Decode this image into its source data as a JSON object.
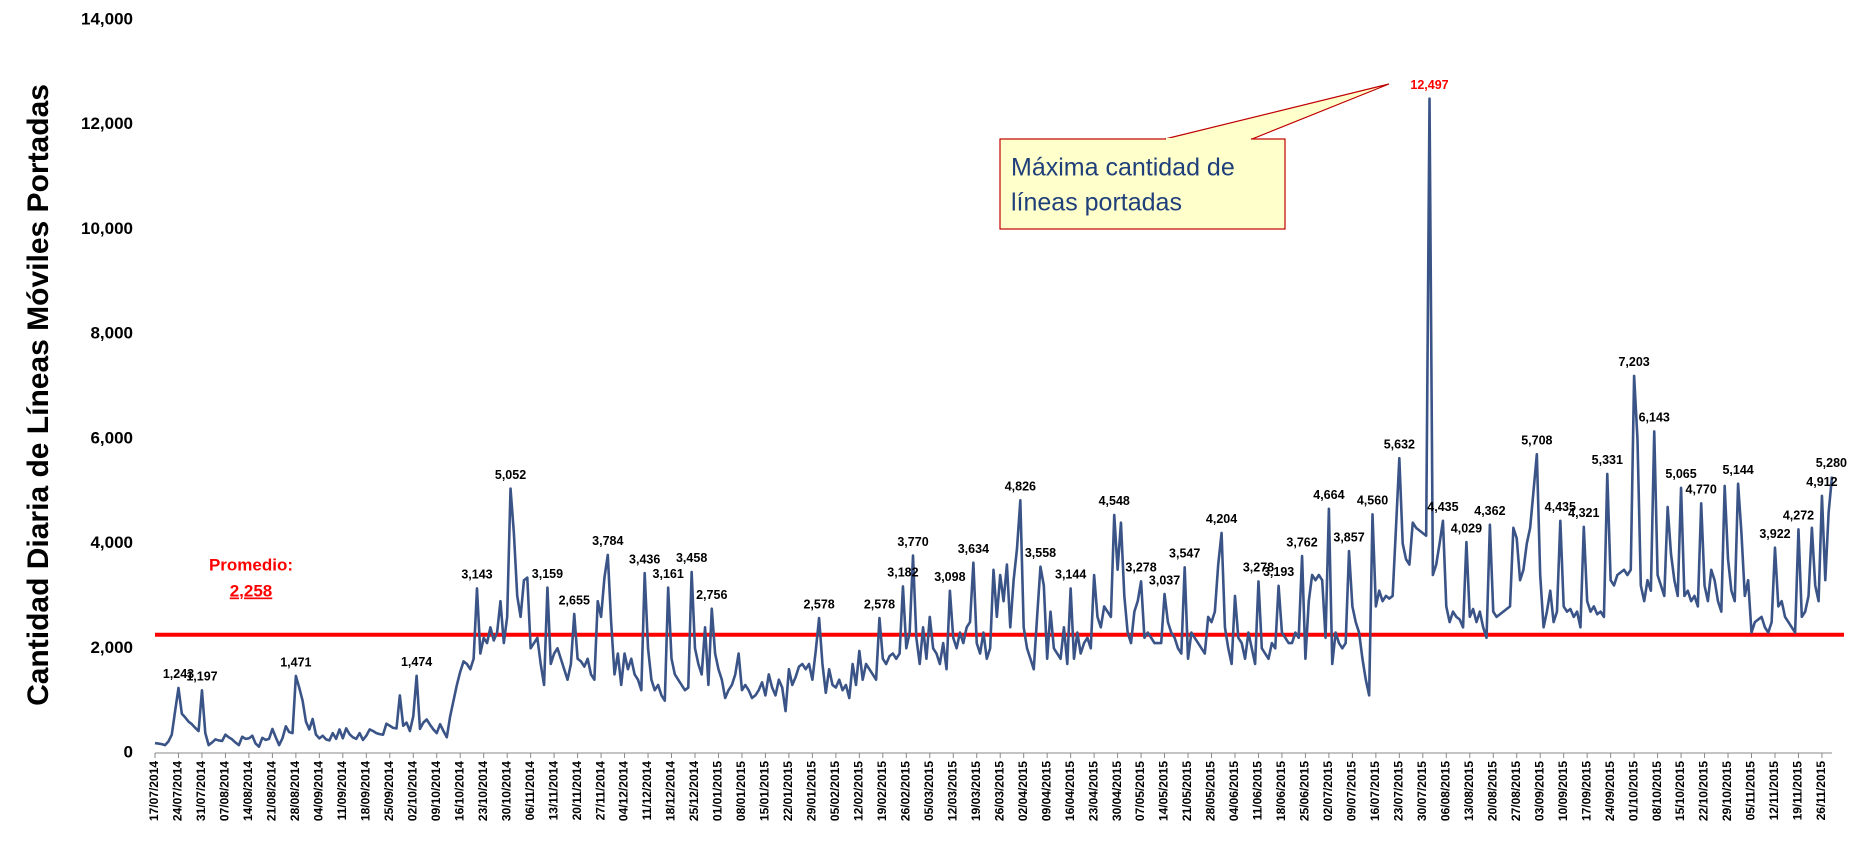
{
  "chart_data": {
    "type": "line",
    "y_label": "Cantidad Diaria de Líneas Móviles Portadas",
    "color": "#3b5487",
    "ylim": [
      0,
      14000
    ],
    "yticks": [
      0,
      {
        "value": 2000,
        "label": "2,000"
      },
      {
        "value": 4000,
        "label": "4,000"
      },
      {
        "value": 6000,
        "label": "6,000"
      },
      {
        "value": 8000,
        "label": "8,000"
      },
      {
        "value": 10000,
        "label": "10,000"
      },
      {
        "value": 12000,
        "label": "12,000"
      },
      {
        "value": 14000,
        "label": "14,000"
      }
    ],
    "grid": false,
    "average": {
      "label": "Promedio:",
      "value": 2258,
      "value_label": "2,258",
      "color": "#ff0000"
    },
    "callout": {
      "text": [
        "Máxima cantidad de",
        "líneas portadas"
      ],
      "fill": "#ffffcc",
      "border": "#c00000",
      "text_color": "#1f3f7a",
      "highlight_color": "#ff0000"
    },
    "categories": [
      "17/07/2014",
      null,
      null,
      null,
      null,
      null,
      null,
      "24/07/2014",
      null,
      null,
      null,
      null,
      null,
      null,
      "31/07/2014",
      null,
      null,
      null,
      null,
      null,
      null,
      "07/08/2014",
      null,
      null,
      null,
      null,
      null,
      null,
      "14/08/2014",
      null,
      null,
      null,
      null,
      null,
      null,
      "21/08/2014",
      null,
      null,
      null,
      null,
      null,
      null,
      "28/08/2014",
      null,
      null,
      null,
      null,
      null,
      null,
      "04/09/2014",
      null,
      null,
      null,
      null,
      null,
      null,
      "11/09/2014",
      null,
      null,
      null,
      null,
      null,
      null,
      "18/09/2014",
      null,
      null,
      null,
      null,
      null,
      null,
      "25/09/2014",
      null,
      null,
      null,
      null,
      null,
      null,
      "02/10/2014",
      null,
      null,
      null,
      null,
      null,
      null,
      "09/10/2014",
      null,
      null,
      null,
      null,
      null,
      null,
      "16/10/2014",
      null,
      null,
      null,
      null,
      null,
      null,
      "23/10/2014",
      null,
      null,
      null,
      null,
      null,
      null,
      "30/10/2014",
      null,
      null,
      null,
      null,
      null,
      null,
      "06/11/2014",
      null,
      null,
      null,
      null,
      null,
      null,
      "13/11/2014",
      null,
      null,
      null,
      null,
      null,
      null,
      "20/11/2014",
      null,
      null,
      null,
      null,
      null,
      null,
      "27/11/2014",
      null,
      null,
      null,
      null,
      null,
      null,
      "04/12/2014",
      null,
      null,
      null,
      null,
      null,
      null,
      "11/12/2014",
      null,
      null,
      null,
      null,
      null,
      null,
      "18/12/2014",
      null,
      null,
      null,
      null,
      null,
      null,
      "25/12/2014",
      null,
      null,
      null,
      null,
      null,
      null,
      "01/01/2015",
      null,
      null,
      null,
      null,
      null,
      null,
      "08/01/2015",
      null,
      null,
      null,
      null,
      null,
      null,
      "15/01/2015",
      null,
      null,
      null,
      null,
      null,
      null,
      "22/01/2015",
      null,
      null,
      null,
      null,
      null,
      null,
      "29/01/2015",
      null,
      null,
      null,
      null,
      null,
      null,
      "05/02/2015",
      null,
      null,
      null,
      null,
      null,
      null,
      "12/02/2015",
      null,
      null,
      null,
      null,
      null,
      null,
      "19/02/2015",
      null,
      null,
      null,
      null,
      null,
      null,
      "26/02/2015",
      null,
      null,
      null,
      null,
      null,
      null,
      "05/03/2015",
      null,
      null,
      null,
      null,
      null,
      null,
      "12/03/2015",
      null,
      null,
      null,
      null,
      null,
      null,
      "19/03/2015",
      null,
      null,
      null,
      null,
      null,
      null,
      "26/03/2015",
      null,
      null,
      null,
      null,
      null,
      null,
      "02/04/2015",
      null,
      null,
      null,
      null,
      null,
      null,
      "09/04/2015",
      null,
      null,
      null,
      null,
      null,
      null,
      "16/04/2015",
      null,
      null,
      null,
      null,
      null,
      null,
      "23/04/2015",
      null,
      null,
      null,
      null,
      null,
      null,
      "30/04/2015",
      null,
      null,
      null,
      null,
      null,
      null,
      "07/05/2015",
      null,
      null,
      null,
      null,
      null,
      null,
      "14/05/2015",
      null,
      null,
      null,
      null,
      null,
      null,
      "21/05/2015",
      null,
      null,
      null,
      null,
      null,
      null,
      "28/05/2015",
      null,
      null,
      null,
      null,
      null,
      null,
      "04/06/2015",
      null,
      null,
      null,
      null,
      null,
      null,
      "11/06/2015",
      null,
      null,
      null,
      null,
      null,
      null,
      "18/06/2015",
      null,
      null,
      null,
      null,
      null,
      null,
      "25/06/2015",
      null,
      null,
      null,
      null,
      null,
      null,
      "02/07/2015",
      null,
      null,
      null,
      null,
      null,
      null,
      "09/07/2015",
      null,
      null,
      null,
      null,
      null,
      null,
      "16/07/2015",
      null,
      null,
      null,
      null,
      null,
      null,
      "23/07/2015",
      null,
      null,
      null,
      null,
      null,
      null,
      "30/07/2015",
      null,
      null,
      null,
      null,
      null,
      null,
      "06/08/2015",
      null,
      null,
      null,
      null,
      null,
      null,
      "13/08/2015",
      null,
      null,
      null,
      null,
      null,
      null,
      "20/08/2015",
      null,
      null,
      null,
      null,
      null,
      null,
      "27/08/2015",
      null,
      null,
      null,
      null,
      null,
      null,
      "03/09/2015",
      null,
      null,
      null,
      null,
      null,
      null,
      "10/09/2015",
      null,
      null,
      null,
      null,
      null,
      null,
      "17/09/2015",
      null,
      null,
      null,
      null,
      null,
      null,
      "24/09/2015",
      null,
      null,
      null,
      null,
      null,
      null,
      "01/10/2015",
      null,
      null,
      null,
      null,
      null,
      null,
      "08/10/2015",
      null,
      null,
      null,
      null,
      null,
      null,
      "15/10/2015",
      null,
      null,
      null,
      null,
      null,
      null,
      "22/10/2015",
      null,
      null,
      null,
      null,
      null,
      null,
      "29/10/2015",
      null,
      null,
      null,
      null,
      null,
      null,
      "05/11/2015",
      null,
      null,
      null,
      null,
      null,
      null,
      "12/11/2015",
      null,
      null,
      null,
      null,
      null,
      null,
      "19/11/2015",
      null,
      null,
      null,
      null,
      null,
      null,
      "26/11/2015",
      null,
      null,
      null
    ],
    "values": [
      190,
      180,
      170,
      150,
      220,
      350,
      800,
      1243,
      750,
      680,
      600,
      550,
      480,
      420,
      1197,
      380,
      150,
      200,
      260,
      240,
      230,
      350,
      300,
      260,
      200,
      150,
      310,
      270,
      280,
      330,
      180,
      120,
      290,
      250,
      270,
      460,
      300,
      150,
      280,
      510,
      400,
      380,
      1471,
      1250,
      1000,
      600,
      450,
      650,
      350,
      280,
      330,
      260,
      240,
      380,
      270,
      450,
      280,
      470,
      360,
      300,
      270,
      380,
      250,
      330,
      450,
      420,
      380,
      360,
      350,
      560,
      520,
      480,
      470,
      1100,
      520,
      580,
      420,
      700,
      1474,
      460,
      580,
      640,
      540,
      450,
      380,
      550,
      420,
      300,
      700,
      1000,
      1300,
      1550,
      1750,
      1700,
      1600,
      1800,
      3143,
      1900,
      2200,
      2100,
      2400,
      2150,
      2300,
      2900,
      2100,
      2600,
      5052,
      4200,
      3000,
      2600,
      3300,
      3350,
      2000,
      2100,
      2200,
      1700,
      1300,
      3159,
      1700,
      1900,
      2000,
      1800,
      1600,
      1400,
      1700,
      2655,
      1800,
      1750,
      1650,
      1800,
      1500,
      1400,
      2900,
      2600,
      3350,
      3784,
      2500,
      1500,
      1900,
      1300,
      1900,
      1600,
      1800,
      1500,
      1400,
      1200,
      3436,
      2000,
      1400,
      1200,
      1300,
      1100,
      1000,
      3161,
      1800,
      1500,
      1400,
      1300,
      1200,
      1250,
      3458,
      2000,
      1700,
      1500,
      2400,
      1300,
      2756,
      1900,
      1600,
      1400,
      1050,
      1200,
      1300,
      1500,
      1900,
      1200,
      1300,
      1200,
      1050,
      1100,
      1200,
      1350,
      1100,
      1500,
      1250,
      1100,
      1400,
      1250,
      800,
      1600,
      1300,
      1450,
      1650,
      1700,
      1600,
      1700,
      1400,
      1950,
      2578,
      1700,
      1150,
      1600,
      1300,
      1250,
      1400,
      1200,
      1300,
      1050,
      1700,
      1300,
      1950,
      1400,
      1700,
      1600,
      1500,
      1400,
      2578,
      1800,
      1700,
      1850,
      1900,
      1800,
      1900,
      3182,
      2000,
      2300,
      3770,
      2200,
      1700,
      2400,
      1800,
      2600,
      2000,
      1900,
      1700,
      2100,
      1600,
      3098,
      2200,
      2000,
      2300,
      2100,
      2400,
      2500,
      3634,
      2100,
      1900,
      2300,
      1800,
      2000,
      3500,
      2600,
      3400,
      2900,
      3600,
      2400,
      3300,
      3900,
      4826,
      2400,
      2000,
      1800,
      1600,
      2600,
      3558,
      3200,
      1800,
      2700,
      2000,
      1900,
      1800,
      2400,
      1700,
      3144,
      1800,
      2300,
      1900,
      2100,
      2200,
      2000,
      3400,
      2600,
      2400,
      2800,
      2700,
      2600,
      4548,
      3500,
      4400,
      3000,
      2300,
      2100,
      2700,
      2900,
      3278,
      2200,
      2300,
      2200,
      2100,
      2100,
      2100,
      3037,
      2500,
      2300,
      2200,
      2000,
      1900,
      3547,
      1800,
      2300,
      2200,
      2100,
      2000,
      1900,
      2600,
      2500,
      2700,
      3600,
      4204,
      2400,
      2000,
      1700,
      3000,
      2200,
      2100,
      1800,
      2300,
      2000,
      1700,
      3278,
      2000,
      1900,
      1800,
      2100,
      2000,
      3193,
      2300,
      2200,
      2100,
      2100,
      2300,
      2200,
      3762,
      1800,
      2900,
      3400,
      3300,
      3400,
      3300,
      2200,
      4664,
      1700,
      2300,
      2100,
      2000,
      2100,
      3857,
      2800,
      2500,
      2300,
      1800,
      1400,
      1100,
      4560,
      2800,
      3100,
      2900,
      3000,
      2950,
      3000,
      4300,
      5632,
      4000,
      3700,
      3600,
      4400,
      4300,
      4250,
      4200,
      4150,
      12497,
      3400,
      3600,
      4000,
      4435,
      2800,
      2500,
      2700,
      2600,
      2550,
      2400,
      4029,
      2600,
      2750,
      2500,
      2700,
      2400,
      2200,
      4362,
      2700,
      2600,
      2650,
      2700,
      2750,
      2800,
      4300,
      4100,
      3300,
      3500,
      4000,
      4300,
      5000,
      5708,
      3400,
      2400,
      2700,
      3100,
      2500,
      2700,
      4435,
      2800,
      2700,
      2750,
      2600,
      2700,
      2400,
      4321,
      2900,
      2700,
      2800,
      2650,
      2700,
      2600,
      5331,
      3300,
      3200,
      3400,
      3450,
      3500,
      3400,
      3500,
      7203,
      6000,
      3200,
      2900,
      3300,
      3100,
      6143,
      3400,
      3200,
      3000,
      4700,
      3800,
      3300,
      3000,
      5065,
      3000,
      3100,
      2900,
      3000,
      2800,
      4770,
      3200,
      2900,
      3500,
      3300,
      2900,
      2700,
      5100,
      3700,
      3100,
      2900,
      5144,
      4200,
      3000,
      3300,
      2300,
      2500,
      2550,
      2600,
      2400,
      2300,
      2500,
      3922,
      2800,
      2900,
      2600,
      2500,
      2400,
      2300,
      4272,
      2600,
      2700,
      3000,
      4300,
      3200,
      2900,
      4912,
      3300,
      4600,
      5280
    ],
    "value_labels": [
      null,
      null,
      null,
      null,
      null,
      null,
      null,
      "1,243",
      null,
      null,
      null,
      null,
      null,
      null,
      "1,197",
      null,
      null,
      null,
      null,
      null,
      null,
      null,
      null,
      null,
      null,
      null,
      null,
      null,
      null,
      null,
      null,
      null,
      null,
      null,
      null,
      null,
      null,
      null,
      null,
      null,
      null,
      null,
      "1,471",
      null,
      null,
      null,
      null,
      null,
      null,
      null,
      null,
      null,
      null,
      null,
      null,
      null,
      null,
      null,
      null,
      null,
      null,
      null,
      null,
      null,
      null,
      null,
      null,
      null,
      null,
      null,
      null,
      null,
      null,
      null,
      null,
      null,
      null,
      null,
      "1,474",
      null,
      null,
      null,
      null,
      null,
      null,
      null,
      null,
      null,
      null,
      null,
      null,
      null,
      null,
      null,
      null,
      null,
      "3,143",
      null,
      null,
      null,
      null,
      null,
      null,
      null,
      null,
      null,
      "5,052",
      null,
      null,
      null,
      null,
      null,
      null,
      null,
      null,
      null,
      null,
      "3,159",
      null,
      null,
      null,
      null,
      null,
      null,
      null,
      "2,655",
      null,
      null,
      null,
      null,
      null,
      null,
      null,
      null,
      null,
      "3,784",
      null,
      null,
      null,
      null,
      null,
      null,
      null,
      null,
      null,
      null,
      "3,436",
      null,
      null,
      null,
      null,
      null,
      null,
      "3,161",
      null,
      null,
      null,
      null,
      null,
      null,
      "3,458",
      null,
      null,
      null,
      null,
      null,
      "2,756",
      null,
      null,
      null,
      null,
      null,
      null,
      null,
      null,
      null,
      null,
      null,
      null,
      null,
      null,
      null,
      null,
      null,
      null,
      null,
      null,
      null,
      null,
      null,
      null,
      null,
      null,
      null,
      null,
      null,
      null,
      null,
      "2,578",
      null,
      null,
      null,
      null,
      null,
      null,
      null,
      null,
      null,
      null,
      null,
      null,
      null,
      null,
      null,
      null,
      null,
      "2,578",
      null,
      null,
      null,
      null,
      null,
      null,
      "3,182",
      null,
      null,
      "3,770",
      null,
      null,
      null,
      null,
      null,
      null,
      null,
      null,
      null,
      null,
      "3,098",
      null,
      null,
      null,
      null,
      null,
      null,
      "3,634",
      null,
      null,
      null,
      null,
      null,
      null,
      null,
      null,
      null,
      null,
      null,
      null,
      null,
      "4,826",
      null,
      null,
      null,
      null,
      null,
      "3,558",
      null,
      null,
      null,
      null,
      null,
      null,
      null,
      null,
      "3,144",
      null,
      null,
      null,
      null,
      null,
      null,
      null,
      null,
      null,
      null,
      null,
      null,
      "4,548",
      null,
      null,
      null,
      null,
      null,
      null,
      null,
      "3,278",
      null,
      null,
      null,
      null,
      null,
      null,
      "3,037",
      null,
      null,
      null,
      null,
      null,
      "3,547",
      null,
      null,
      null,
      null,
      null,
      null,
      null,
      null,
      null,
      null,
      "4,204",
      null,
      null,
      null,
      null,
      null,
      null,
      null,
      null,
      null,
      null,
      "3,278",
      null,
      null,
      null,
      null,
      null,
      "3,193",
      null,
      null,
      null,
      null,
      null,
      null,
      "3,762",
      null,
      null,
      null,
      null,
      null,
      null,
      null,
      "4,664",
      null,
      null,
      null,
      null,
      null,
      "3,857",
      null,
      null,
      null,
      null,
      null,
      null,
      "4,560",
      null,
      null,
      null,
      null,
      null,
      null,
      null,
      "5,632",
      null,
      null,
      null,
      null,
      null,
      null,
      null,
      null,
      "12,497",
      null,
      null,
      null,
      "4,435",
      null,
      null,
      null,
      null,
      null,
      null,
      "4,029",
      null,
      null,
      null,
      null,
      null,
      null,
      "4,362",
      null,
      null,
      null,
      null,
      null,
      null,
      null,
      null,
      null,
      null,
      null,
      null,
      null,
      "5,708",
      null,
      null,
      null,
      null,
      null,
      null,
      "4,435",
      null,
      null,
      null,
      null,
      null,
      null,
      "4,321",
      null,
      null,
      null,
      null,
      null,
      null,
      "5,331",
      null,
      null,
      null,
      null,
      null,
      null,
      null,
      "7,203",
      null,
      null,
      null,
      null,
      null,
      "6,143",
      null,
      null,
      null,
      null,
      null,
      null,
      null,
      "5,065",
      null,
      null,
      null,
      null,
      null,
      "4,770",
      null,
      null,
      null,
      null,
      null,
      null,
      null,
      null,
      null,
      null,
      "5,144",
      null,
      null,
      null,
      null,
      null,
      null,
      null,
      null,
      null,
      null,
      "3,922",
      null,
      null,
      null,
      null,
      null,
      null,
      "4,272",
      null,
      null,
      null,
      null,
      null,
      null,
      "4,912",
      null,
      null,
      "5,280"
    ]
  }
}
